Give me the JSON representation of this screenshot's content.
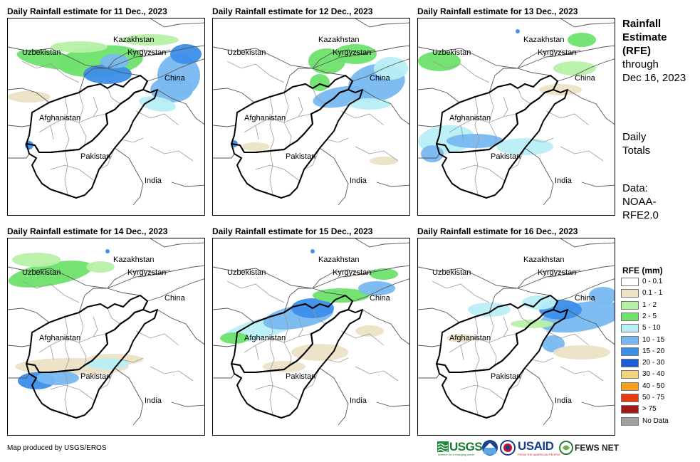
{
  "panels": [
    {
      "title": "Daily Rainfall estimate for 11 Dec., 2023"
    },
    {
      "title": "Daily Rainfall estimate for 12 Dec., 2023"
    },
    {
      "title": "Daily Rainfall estimate for 13 Dec., 2023"
    },
    {
      "title": "Daily Rainfall estimate for 14 Dec., 2023"
    },
    {
      "title": "Daily Rainfall estimate for 15 Dec., 2023"
    },
    {
      "title": "Daily Rainfall estimate for 16 Dec., 2023"
    }
  ],
  "map_labels": {
    "kazakhstan": "Kazakhstan",
    "uzbekistan": "Uzbekistan",
    "kyrgyzstan": "Kyrgyzstan",
    "china": "China",
    "afghanistan": "Afghanistan",
    "pakistan": "Pakistan",
    "india": "India"
  },
  "side": {
    "line1": "Rainfall",
    "line2": "Estimate",
    "line3": "(RFE)",
    "line4": "through",
    "line5": "Dec 16, 2023",
    "daily1": "Daily",
    "daily2": "Totals",
    "data1": "Data:",
    "data2": "NOAA-",
    "data3": "RFE2.0"
  },
  "legend": {
    "title": "RFE (mm)",
    "items": [
      {
        "label": "0 - 0.1",
        "color": "#ffffff"
      },
      {
        "label": "0.1 - 1",
        "color": "#ece2c6"
      },
      {
        "label": "1 - 2",
        "color": "#b6f0a6"
      },
      {
        "label": "2 - 5",
        "color": "#6ee26c"
      },
      {
        "label": "5 - 10",
        "color": "#b8eef6"
      },
      {
        "label": "10 - 15",
        "color": "#78b8f0"
      },
      {
        "label": "15 - 20",
        "color": "#3c8ee8"
      },
      {
        "label": "20 - 30",
        "color": "#1c5cd8"
      },
      {
        "label": "30 - 40",
        "color": "#f2d480"
      },
      {
        "label": "40 - 50",
        "color": "#f4a020"
      },
      {
        "label": "50 - 75",
        "color": "#e83a10"
      },
      {
        "label": "> 75",
        "color": "#a01818"
      },
      {
        "label": "No Data",
        "color": "#a0a0a0"
      }
    ]
  },
  "credit": "Map produced by USGS/EROS",
  "logos": {
    "usgs": "USGS",
    "usgs_tag": "science for a changing world",
    "usaid": "USAID",
    "usaid_tag": "FROM THE AMERICAN PEOPLE",
    "fewsnet": "FEWS NET"
  }
}
